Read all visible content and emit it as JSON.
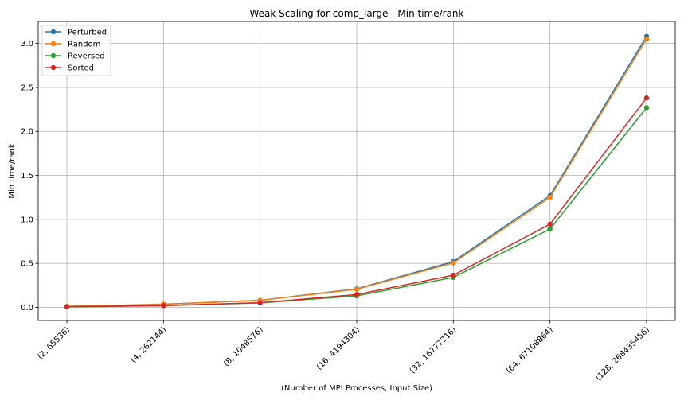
{
  "chart_data": {
    "type": "line",
    "title": "Weak Scaling for comp_large - Min time/rank",
    "xlabel": "(Number of MPI Processes, Input Size)",
    "ylabel": "Min time/rank",
    "categories": [
      "(2, 65536)",
      "(4, 262144)",
      "(8, 1048576)",
      "(16, 4194304)",
      "(32, 16777216)",
      "(64, 67108864)",
      "(128, 268435456)"
    ],
    "ylim": [
      -0.15,
      3.25
    ],
    "yticks": [
      "0.0",
      "0.5",
      "1.0",
      "1.5",
      "2.0",
      "2.5",
      "3.0"
    ],
    "grid": true,
    "legend_position": "top-left",
    "series": [
      {
        "name": "Perturbed",
        "color": "#1f77b4",
        "values": [
          0.01,
          0.035,
          0.08,
          0.21,
          0.52,
          1.27,
          3.08
        ]
      },
      {
        "name": "Random",
        "color": "#ff7f0e",
        "values": [
          0.01,
          0.033,
          0.079,
          0.205,
          0.505,
          1.25,
          3.05
        ]
      },
      {
        "name": "Reversed",
        "color": "#2ca02c",
        "values": [
          0.005,
          0.018,
          0.05,
          0.13,
          0.34,
          0.89,
          2.27
        ]
      },
      {
        "name": "Sorted",
        "color": "#d62728",
        "values": [
          0.006,
          0.02,
          0.052,
          0.145,
          0.365,
          0.945,
          2.38
        ]
      }
    ]
  }
}
